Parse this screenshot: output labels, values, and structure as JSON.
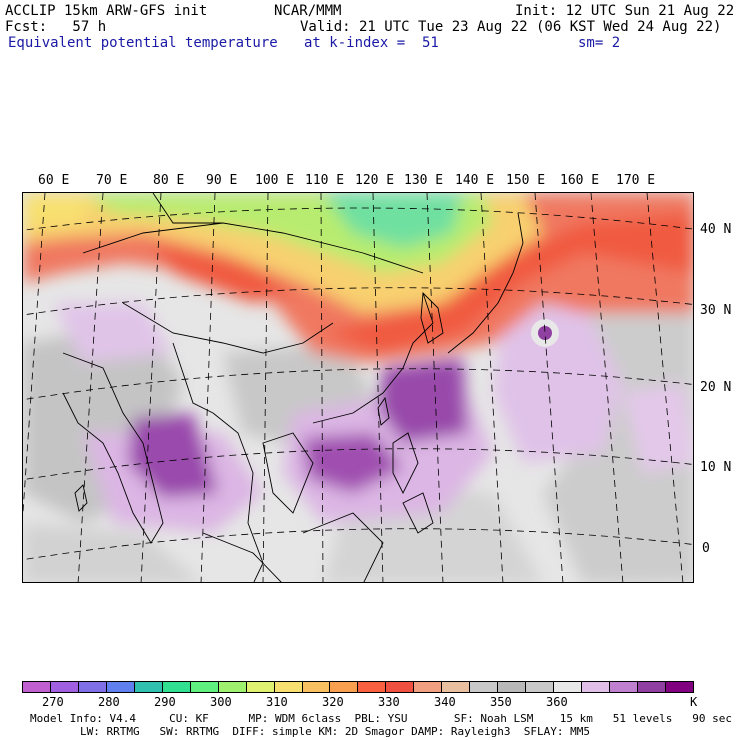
{
  "header": {
    "line1_left": "ACCLIP 15km ARW-GFS init",
    "line1_center": "NCAR/MMM",
    "line1_right": "Init: 12 UTC Sun 21 Aug 22",
    "line2_left": "Fcst:   57 h",
    "line2_right": "Valid: 21 UTC Tue 23 Aug 22 (06 KST Wed 24 Aug 22)",
    "line3_left": "Equivalent potential temperature",
    "line3_center": "at k-index =  51",
    "line3_right": "sm= 2"
  },
  "map": {
    "lon_labels": [
      "60 E",
      "70 E",
      "80 E",
      "90 E",
      "100 E",
      "110 E",
      "120 E",
      "130 E",
      "140 E",
      "150 E",
      "160 E",
      "170 E"
    ],
    "lat_labels": [
      "40 N",
      "30 N",
      "20 N",
      "10 N",
      "0"
    ]
  },
  "colorbar": {
    "colors": [
      "#c060d0",
      "#a060e0",
      "#8070e8",
      "#6080f0",
      "#30c0b0",
      "#30e090",
      "#60f080",
      "#a0f070",
      "#e0f070",
      "#f8e070",
      "#f8c060",
      "#f8a050",
      "#f86040",
      "#f05040",
      "#f0a080",
      "#e8c0a0",
      "#c8c8c8",
      "#b8b8b8",
      "#c8c8c8",
      "#e8e8e8",
      "#e0c0e8",
      "#c080d0",
      "#9040a0",
      "#800080"
    ],
    "labels": [
      "270",
      "280",
      "290",
      "300",
      "310",
      "320",
      "330",
      "340",
      "350",
      "360",
      "K"
    ]
  },
  "footer": {
    "line1": "Model Info: V4.4     CU: KF      MP: WDM 6class  PBL: YSU       SF: Noah LSM    15 km   51 levels   90 sec",
    "line2": "LW: RRTMG   SW: RRTMG  DIFF: simple KM: 2D Smagor DAMP: Rayleigh3  SFLAY: MM5"
  }
}
